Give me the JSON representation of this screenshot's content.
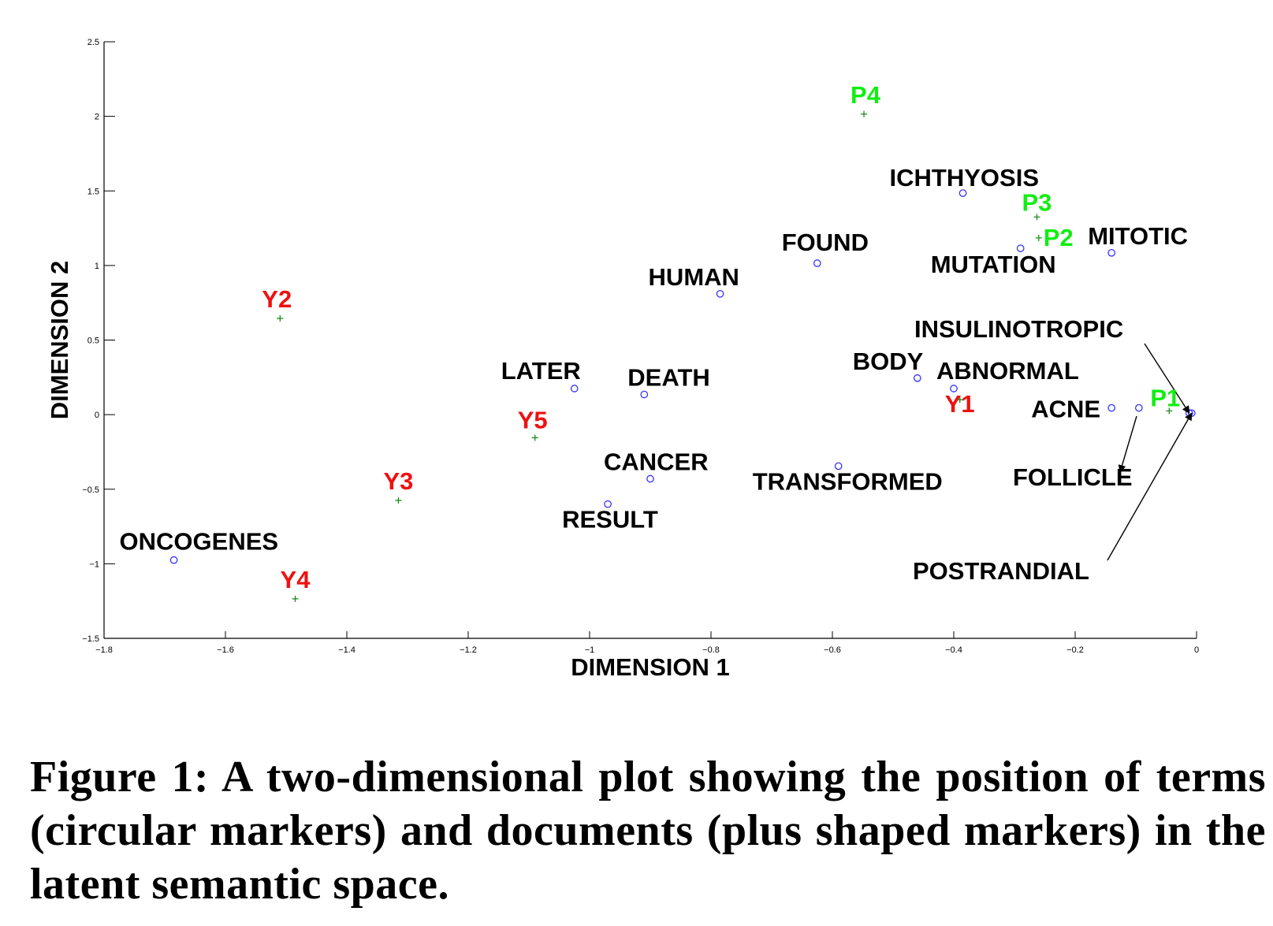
{
  "chart_data": {
    "type": "scatter",
    "xlabel": "DIMENSION 1",
    "ylabel": "DIMENSION 2",
    "xlim": [
      -1.8,
      0
    ],
    "ylim": [
      -1.5,
      2.5
    ],
    "xticks": [
      -1.8,
      -1.6,
      -1.4,
      -1.2,
      -1,
      -0.8,
      -0.6,
      -0.4,
      -0.2,
      0
    ],
    "xtick_labels": [
      "−1.8",
      "−1.6",
      "−1.4",
      "−1.2",
      "−1",
      "−0.8",
      "−0.6",
      "−0.4",
      "−0.2",
      "0"
    ],
    "yticks": [
      -1.5,
      -1,
      -0.5,
      0,
      0.5,
      1,
      1.5,
      2,
      2.5
    ],
    "ytick_labels": [
      "−1.5",
      "−1",
      "−0.5",
      "0",
      "0.5",
      "1",
      "1.5",
      "2",
      "2.5"
    ],
    "grid": false,
    "colors": {
      "term": "#3333ff",
      "doc": "#1a8f1a",
      "doc_label_y": "#ee1111",
      "doc_label_p": "#11ee11",
      "term_label": "#000000"
    },
    "series": [
      {
        "marker": "circle",
        "points": [
          {
            "label": "ONCOGENES",
            "x": -1.685,
            "y": -0.975
          },
          {
            "label": "LATER",
            "x": -1.025,
            "y": 0.175
          },
          {
            "label": "DEATH",
            "x": -0.91,
            "y": 0.135
          },
          {
            "label": "CANCER",
            "x": -0.9,
            "y": -0.43
          },
          {
            "label": "RESULT",
            "x": -0.97,
            "y": -0.6
          },
          {
            "label": "HUMAN",
            "x": -0.785,
            "y": 0.81
          },
          {
            "label": "FOUND",
            "x": -0.625,
            "y": 1.015
          },
          {
            "label": "TRANSFORMED",
            "x": -0.59,
            "y": -0.345
          },
          {
            "label": "BODY",
            "x": -0.46,
            "y": 0.245
          },
          {
            "label": "ABNORMAL",
            "x": -0.4,
            "y": 0.175
          },
          {
            "label": "ICHTHYOSIS",
            "x": -0.385,
            "y": 1.485
          },
          {
            "label": "MUTATION",
            "x": -0.29,
            "y": 1.115
          },
          {
            "label": "MITOTIC",
            "x": -0.14,
            "y": 1.085
          },
          {
            "label": "ACNE",
            "x": -0.14,
            "y": 0.045
          },
          {
            "label": "FOLLICLE",
            "x": -0.095,
            "y": 0.045
          },
          {
            "label": "INSULINOTROPIC",
            "x": -0.012,
            "y": 0.01
          },
          {
            "label": "POSTRANDIAL",
            "x": -0.008,
            "y": 0.01
          }
        ]
      },
      {
        "marker": "plus",
        "points": [
          {
            "label": "Y1",
            "x": -0.39,
            "y": 0.1
          },
          {
            "label": "Y2",
            "x": -1.51,
            "y": 0.645
          },
          {
            "label": "Y3",
            "x": -1.315,
            "y": -0.575
          },
          {
            "label": "Y4",
            "x": -1.485,
            "y": -1.235
          },
          {
            "label": "Y5",
            "x": -1.09,
            "y": -0.155
          },
          {
            "label": "P1",
            "x": -0.045,
            "y": 0.025
          },
          {
            "label": "P2",
            "x": -0.26,
            "y": 1.185
          },
          {
            "label": "P3",
            "x": -0.263,
            "y": 1.325
          },
          {
            "label": "P4",
            "x": -0.548,
            "y": 2.015
          }
        ]
      }
    ],
    "annotations": [
      {
        "text": "INSULINOTROPIC",
        "arrow_to": "INSULINOTROPIC"
      },
      {
        "text": "FOLLICLE",
        "arrow_to": "FOLLICLE"
      },
      {
        "text": "POSTRANDIAL",
        "arrow_to": "POSTRANDIAL"
      }
    ]
  },
  "caption": "Figure 1: A two-dimensional plot showing the position of terms (circular markers) and documents (plus shaped markers) in the latent semantic space."
}
